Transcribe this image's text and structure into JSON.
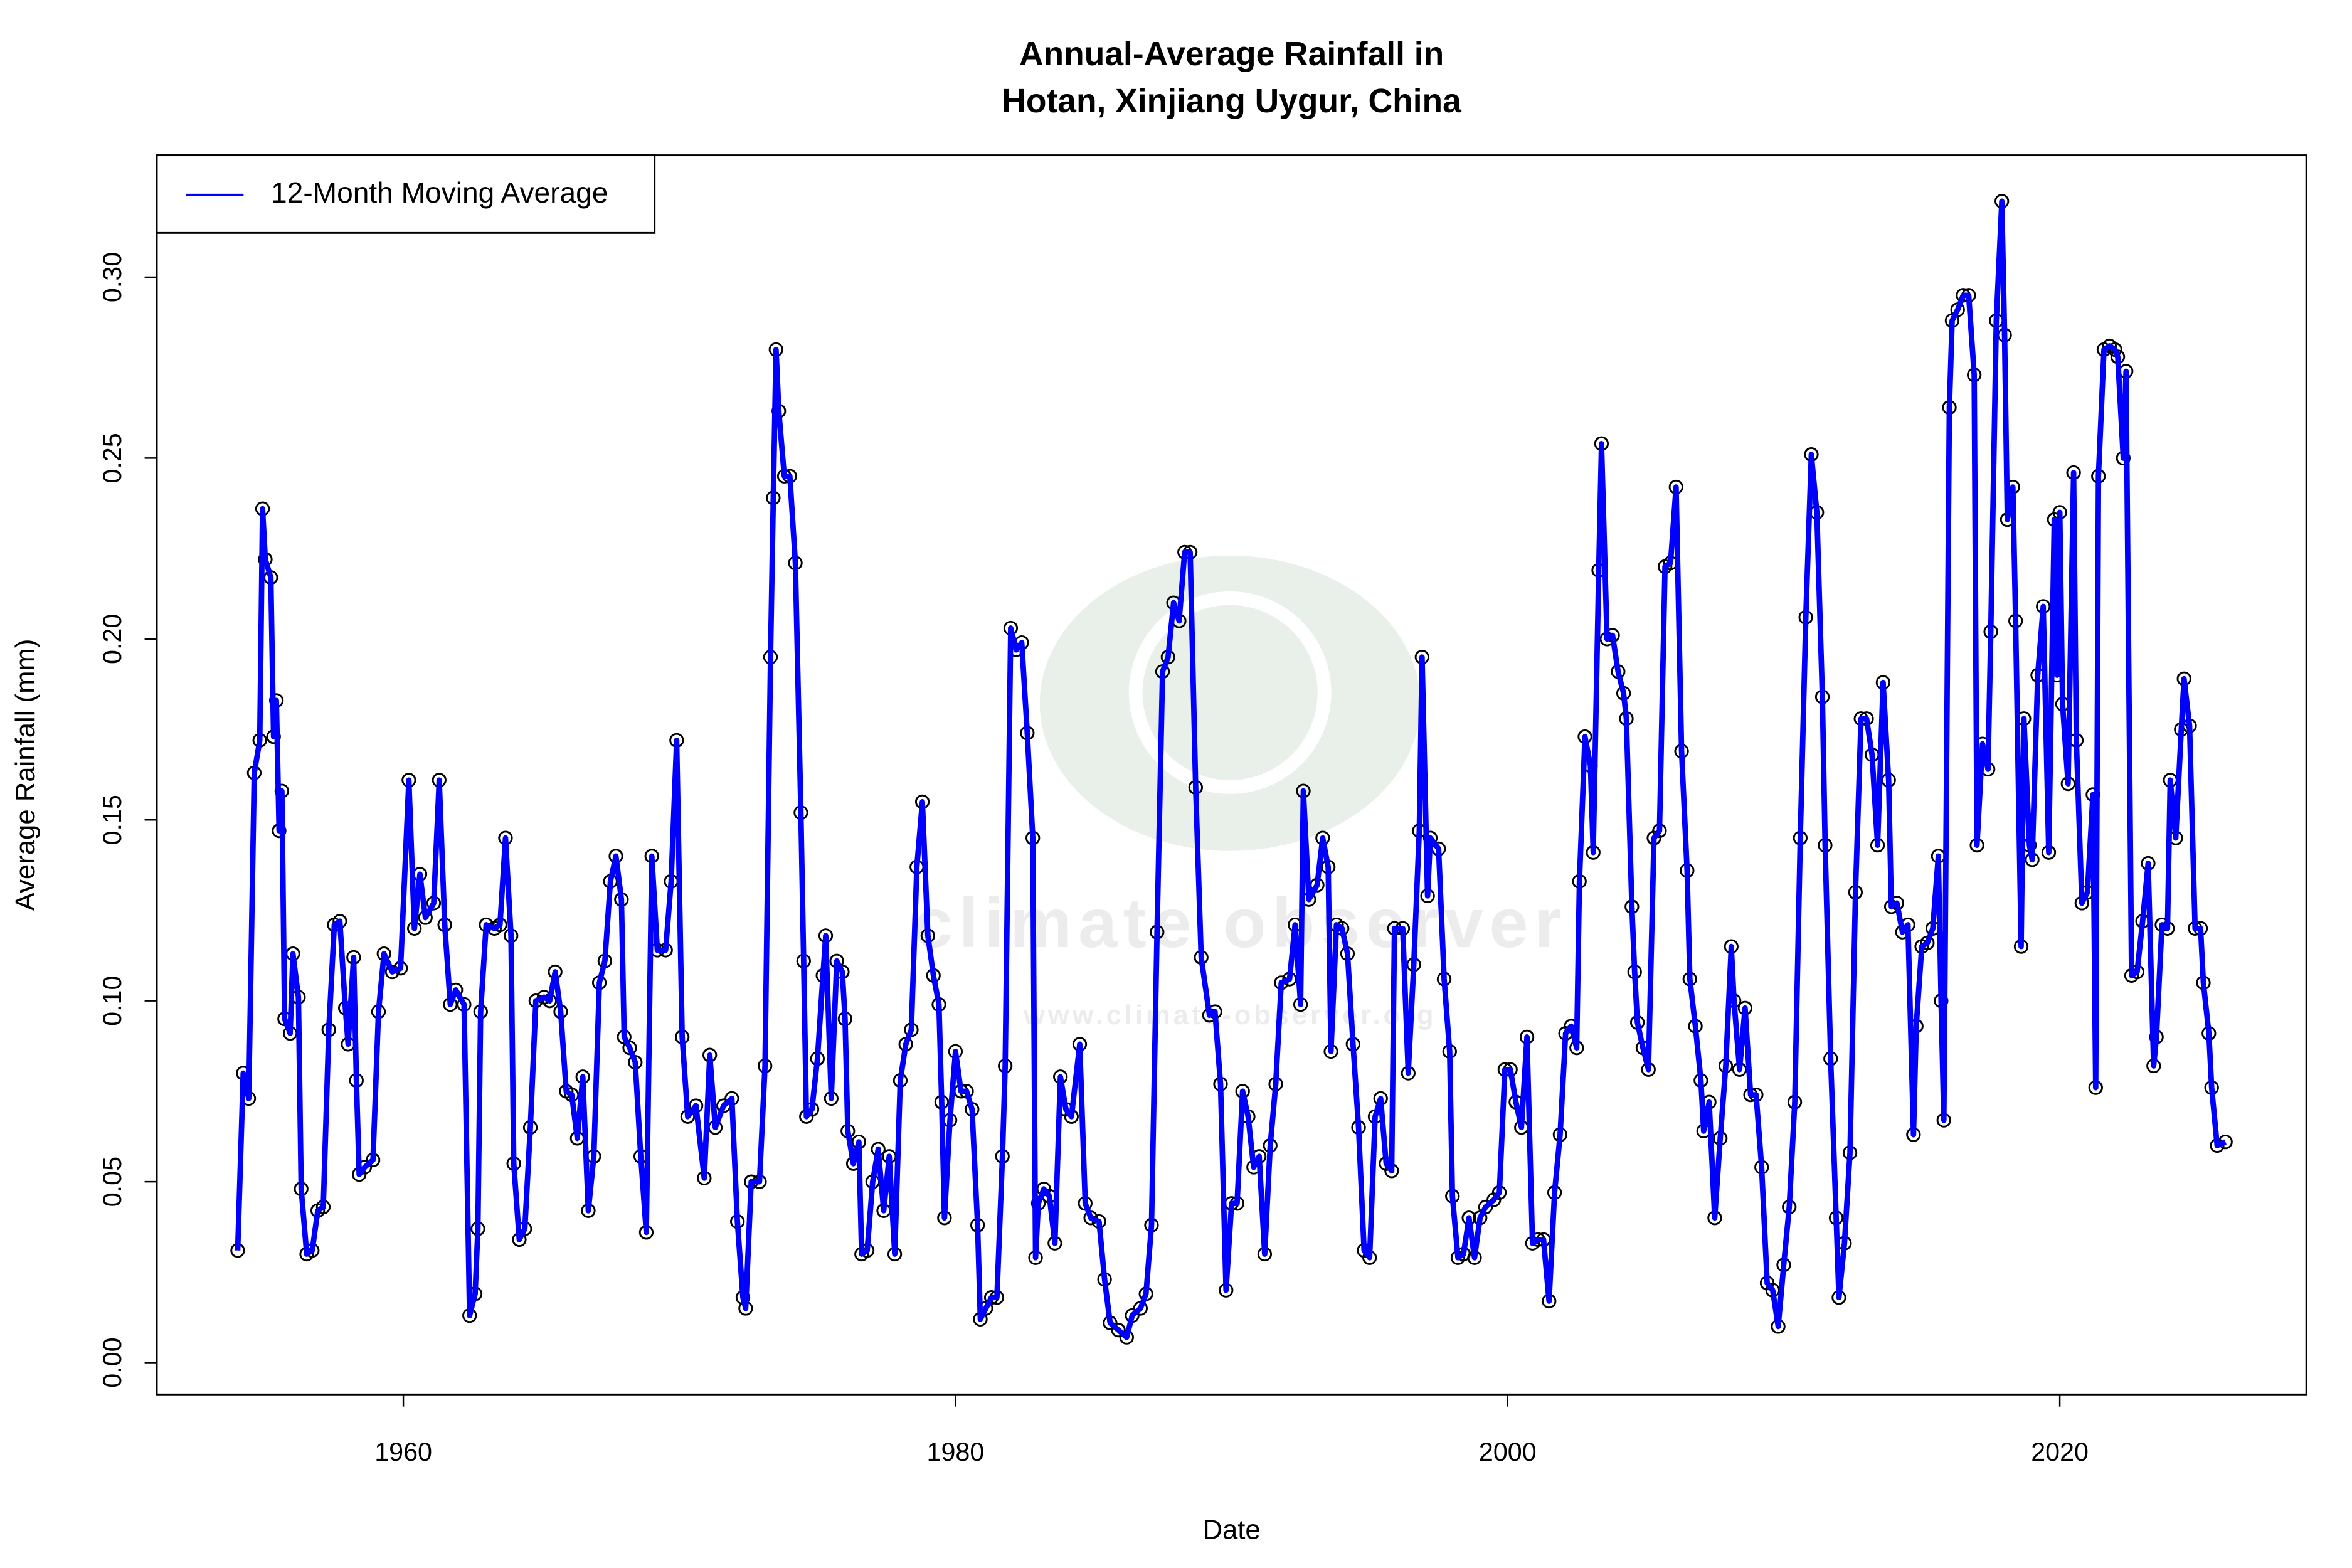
{
  "chart_data": {
    "type": "line",
    "title": [
      "Annual-Average Rainfall in",
      "Hotan, Xinjiang Uygur, China"
    ],
    "x_label": "Date",
    "y_label": "Average Rainfall (mm)",
    "watermark": [
      "climate observer",
      "www.climate-observer.org"
    ],
    "legend": "top-left",
    "grid": false,
    "xlim": [
      1951.07,
      2028.93
    ],
    "xticks": [
      1960,
      1980,
      2000,
      2020
    ],
    "ylim": [
      -0.0088,
      0.3337
    ],
    "yticks": [
      {
        "value": 0,
        "label": "0.00"
      },
      {
        "value": 0.05,
        "label": "0.05"
      },
      {
        "value": 0.1,
        "label": "0.10"
      },
      {
        "value": 0.15,
        "label": "0.15"
      },
      {
        "value": 0.2,
        "label": "0.20"
      },
      {
        "value": 0.25,
        "label": "0.25"
      },
      {
        "value": 0.3,
        "label": "0.30"
      }
    ],
    "x": [
      1954.0,
      1954.2,
      1954.4,
      1954.6,
      1954.8,
      1954.9,
      1955.0,
      1955.2,
      1955.3,
      1955.4,
      1955.5,
      1955.6,
      1955.7,
      1955.9,
      1956.0,
      1956.2,
      1956.3,
      1956.5,
      1956.7,
      1956.9,
      1957.1,
      1957.3,
      1957.5,
      1957.7,
      1957.9,
      1958.0,
      1958.2,
      1958.3,
      1958.4,
      1958.6,
      1958.9,
      1959.1,
      1959.3,
      1959.6,
      1959.9,
      1960.2,
      1960.4,
      1960.6,
      1960.8,
      1961.1,
      1961.3,
      1961.5,
      1961.7,
      1961.9,
      1962.2,
      1962.4,
      1962.6,
      1962.7,
      1962.8,
      1963.0,
      1963.3,
      1963.5,
      1963.7,
      1963.9,
      1964.0,
      1964.2,
      1964.4,
      1964.6,
      1964.8,
      1965.1,
      1965.3,
      1965.5,
      1965.7,
      1965.9,
      1966.1,
      1966.3,
      1966.5,
      1966.7,
      1966.9,
      1967.1,
      1967.3,
      1967.5,
      1967.7,
      1967.9,
      1968.0,
      1968.2,
      1968.4,
      1968.6,
      1968.8,
      1969.0,
      1969.2,
      1969.5,
      1969.7,
      1969.9,
      1970.1,
      1970.3,
      1970.6,
      1970.9,
      1971.1,
      1971.3,
      1971.6,
      1971.9,
      1972.1,
      1972.3,
      1972.4,
      1972.6,
      1972.9,
      1973.1,
      1973.3,
      1973.4,
      1973.5,
      1973.6,
      1973.8,
      1974.0,
      1974.2,
      1974.4,
      1974.5,
      1974.6,
      1974.8,
      1975.0,
      1975.2,
      1975.3,
      1975.5,
      1975.7,
      1975.9,
      1976.0,
      1976.1,
      1976.3,
      1976.5,
      1976.6,
      1976.8,
      1977.0,
      1977.2,
      1977.4,
      1977.6,
      1977.8,
      1978.0,
      1978.2,
      1978.4,
      1978.6,
      1978.8,
      1979.0,
      1979.2,
      1979.4,
      1979.5,
      1979.6,
      1979.8,
      1980.0,
      1980.2,
      1980.4,
      1980.6,
      1980.8,
      1980.9,
      1981.1,
      1981.3,
      1981.5,
      1981.7,
      1981.8,
      1982.0,
      1982.2,
      1982.4,
      1982.6,
      1982.8,
      1982.9,
      1983.0,
      1983.2,
      1983.4,
      1983.6,
      1983.8,
      1984.0,
      1984.2,
      1984.5,
      1984.7,
      1984.9,
      1985.2,
      1985.4,
      1985.6,
      1985.9,
      1986.2,
      1986.4,
      1986.7,
      1986.9,
      1987.1,
      1987.3,
      1987.5,
      1987.7,
      1987.9,
      1988.1,
      1988.3,
      1988.5,
      1988.7,
      1988.9,
      1989.2,
      1989.4,
      1989.6,
      1989.8,
      1990.0,
      1990.2,
      1990.4,
      1990.6,
      1990.8,
      1991.0,
      1991.2,
      1991.4,
      1991.6,
      1991.8,
      1992.1,
      1992.3,
      1992.5,
      1992.6,
      1992.8,
      1993.1,
      1993.3,
      1993.5,
      1993.6,
      1993.8,
      1994.0,
      1994.2,
      1994.4,
      1994.6,
      1994.8,
      1995.0,
      1995.2,
      1995.4,
      1995.6,
      1995.8,
      1995.9,
      1996.2,
      1996.4,
      1996.6,
      1996.8,
      1996.9,
      1997.1,
      1997.2,
      1997.5,
      1997.7,
      1997.9,
      1998.0,
      1998.2,
      1998.4,
      1998.6,
      1998.8,
      1999.0,
      1999.2,
      1999.5,
      1999.7,
      1999.9,
      2000.1,
      2000.3,
      2000.5,
      2000.7,
      2000.9,
      2001.1,
      2001.3,
      2001.5,
      2001.7,
      2001.9,
      2002.1,
      2002.3,
      2002.5,
      2002.6,
      2002.8,
      2003.0,
      2003.1,
      2003.3,
      2003.4,
      2003.6,
      2003.8,
      2004.0,
      2004.2,
      2004.3,
      2004.5,
      2004.6,
      2004.7,
      2004.9,
      2005.1,
      2005.3,
      2005.5,
      2005.7,
      2005.9,
      2006.1,
      2006.3,
      2006.5,
      2006.6,
      2006.8,
      2007.0,
      2007.1,
      2007.3,
      2007.5,
      2007.7,
      2007.9,
      2008.1,
      2008.2,
      2008.4,
      2008.6,
      2008.8,
      2009.0,
      2009.2,
      2009.4,
      2009.6,
      2009.8,
      2010.0,
      2010.2,
      2010.4,
      2010.6,
      2010.8,
      2011.0,
      2011.2,
      2011.4,
      2011.5,
      2011.7,
      2011.9,
      2012.0,
      2012.2,
      2012.4,
      2012.6,
      2012.8,
      2013.0,
      2013.2,
      2013.4,
      2013.6,
      2013.8,
      2013.9,
      2014.1,
      2014.3,
      2014.5,
      2014.7,
      2014.8,
      2015.0,
      2015.2,
      2015.4,
      2015.6,
      2015.7,
      2015.8,
      2016.0,
      2016.1,
      2016.3,
      2016.5,
      2016.7,
      2016.9,
      2017.0,
      2017.2,
      2017.4,
      2017.5,
      2017.7,
      2017.9,
      2018.0,
      2018.1,
      2018.3,
      2018.4,
      2018.6,
      2018.7,
      2018.9,
      2019.0,
      2019.2,
      2019.4,
      2019.6,
      2019.8,
      2019.9,
      2020.0,
      2020.1,
      2020.3,
      2020.5,
      2020.6,
      2020.8,
      2021.0,
      2021.2,
      2021.3,
      2021.4,
      2021.6,
      2021.8,
      2022.0,
      2022.1,
      2022.3,
      2022.4,
      2022.6,
      2022.8,
      2023.0,
      2023.2,
      2023.4,
      2023.5,
      2023.7,
      2023.9,
      2024.0,
      2024.2,
      2024.4,
      2024.5,
      2024.7,
      2024.9,
      2025.1,
      2025.2,
      2025.4,
      2025.5,
      2025.7,
      2026.0
    ],
    "series": [
      {
        "name": "12-Month Moving Average",
        "color": "#0000ff",
        "values": [
          0.031,
          0.08,
          0.073,
          0.163,
          0.172,
          0.236,
          0.222,
          0.217,
          0.173,
          0.183,
          0.147,
          0.158,
          0.095,
          0.091,
          0.113,
          0.101,
          0.048,
          0.03,
          0.031,
          0.042,
          0.043,
          0.092,
          0.121,
          0.122,
          0.098,
          0.088,
          0.112,
          0.078,
          0.052,
          0.054,
          0.056,
          0.097,
          0.113,
          0.108,
          0.109,
          0.161,
          0.12,
          0.135,
          0.123,
          0.127,
          0.161,
          0.121,
          0.099,
          0.103,
          0.099,
          0.013,
          0.019,
          0.037,
          0.097,
          0.121,
          0.12,
          0.121,
          0.145,
          0.118,
          0.055,
          0.034,
          0.037,
          0.065,
          0.1,
          0.101,
          0.1,
          0.108,
          0.097,
          0.075,
          0.074,
          0.062,
          0.079,
          0.042,
          0.057,
          0.105,
          0.111,
          0.133,
          0.14,
          0.128,
          0.09,
          0.087,
          0.083,
          0.057,
          0.036,
          0.14,
          0.114,
          0.114,
          0.133,
          0.172,
          0.09,
          0.068,
          0.071,
          0.051,
          0.085,
          0.065,
          0.071,
          0.073,
          0.039,
          0.018,
          0.015,
          0.05,
          0.05,
          0.082,
          0.195,
          0.239,
          0.28,
          0.263,
          0.245,
          0.245,
          0.221,
          0.152,
          0.111,
          0.068,
          0.07,
          0.084,
          0.107,
          0.118,
          0.073,
          0.111,
          0.108,
          0.095,
          0.064,
          0.055,
          0.061,
          0.03,
          0.031,
          0.05,
          0.059,
          0.042,
          0.057,
          0.03,
          0.078,
          0.088,
          0.092,
          0.137,
          0.155,
          0.118,
          0.107,
          0.099,
          0.072,
          0.04,
          0.067,
          0.086,
          0.075,
          0.075,
          0.07,
          0.038,
          0.012,
          0.015,
          0.018,
          0.018,
          0.057,
          0.082,
          0.203,
          0.197,
          0.199,
          0.174,
          0.145,
          0.029,
          0.044,
          0.048,
          0.046,
          0.033,
          0.079,
          0.07,
          0.068,
          0.088,
          0.044,
          0.04,
          0.039,
          0.023,
          0.011,
          0.009,
          0.007,
          0.013,
          0.015,
          0.019,
          0.038,
          0.119,
          0.191,
          0.195,
          0.21,
          0.205,
          0.224,
          0.224,
          0.159,
          0.112,
          0.096,
          0.097,
          0.077,
          0.02,
          0.044,
          0.044,
          0.075,
          0.068,
          0.054,
          0.057,
          0.03,
          0.06,
          0.077,
          0.105,
          0.106,
          0.121,
          0.099,
          0.158,
          0.128,
          0.132,
          0.145,
          0.137,
          0.086,
          0.121,
          0.12,
          0.113,
          0.088,
          0.065,
          0.031,
          0.029,
          0.068,
          0.073,
          0.055,
          0.053,
          0.12,
          0.12,
          0.08,
          0.11,
          0.147,
          0.195,
          0.129,
          0.145,
          0.142,
          0.106,
          0.086,
          0.046,
          0.029,
          0.03,
          0.04,
          0.029,
          0.04,
          0.043,
          0.045,
          0.047,
          0.081,
          0.081,
          0.072,
          0.065,
          0.09,
          0.033,
          0.034,
          0.034,
          0.017,
          0.047,
          0.063,
          0.091,
          0.093,
          0.087,
          0.133,
          0.173,
          0.165,
          0.141,
          0.219,
          0.254,
          0.2,
          0.201,
          0.191,
          0.185,
          0.178,
          0.126,
          0.108,
          0.094,
          0.087,
          0.081,
          0.145,
          0.147,
          0.22,
          0.221,
          0.242,
          0.169,
          0.136,
          0.106,
          0.093,
          0.078,
          0.064,
          0.072,
          0.04,
          0.062,
          0.082,
          0.115,
          0.1,
          0.081,
          0.098,
          0.074,
          0.074,
          0.054,
          0.022,
          0.02,
          0.01,
          0.027,
          0.043,
          0.072,
          0.145,
          0.206,
          0.251,
          0.235,
          0.184,
          0.143,
          0.084,
          0.04,
          0.018,
          0.033,
          0.058,
          0.13,
          0.178,
          0.178,
          0.168,
          0.143,
          0.188,
          0.161,
          0.126,
          0.127,
          0.119,
          0.121,
          0.063,
          0.093,
          0.115,
          0.116,
          0.12,
          0.14,
          0.1,
          0.067,
          0.264,
          0.288,
          0.291,
          0.295,
          0.295,
          0.273,
          0.143,
          0.171,
          0.164,
          0.202,
          0.288,
          0.321,
          0.284,
          0.233,
          0.242,
          0.205,
          0.115,
          0.178,
          0.143,
          0.139,
          0.19,
          0.209,
          0.141,
          0.233,
          0.19,
          0.235,
          0.182,
          0.16,
          0.246,
          0.172,
          0.127,
          0.13,
          0.157,
          0.076,
          0.245,
          0.28,
          0.281,
          0.28,
          0.278,
          0.25,
          0.274,
          0.107,
          0.108,
          0.122,
          0.138,
          0.082,
          0.09,
          0.121,
          0.12,
          0.161,
          0.145,
          0.175,
          0.189,
          0.176,
          0.12,
          0.12,
          0.105,
          0.091,
          0.076,
          0.06,
          0.061
        ]
      }
    ]
  }
}
